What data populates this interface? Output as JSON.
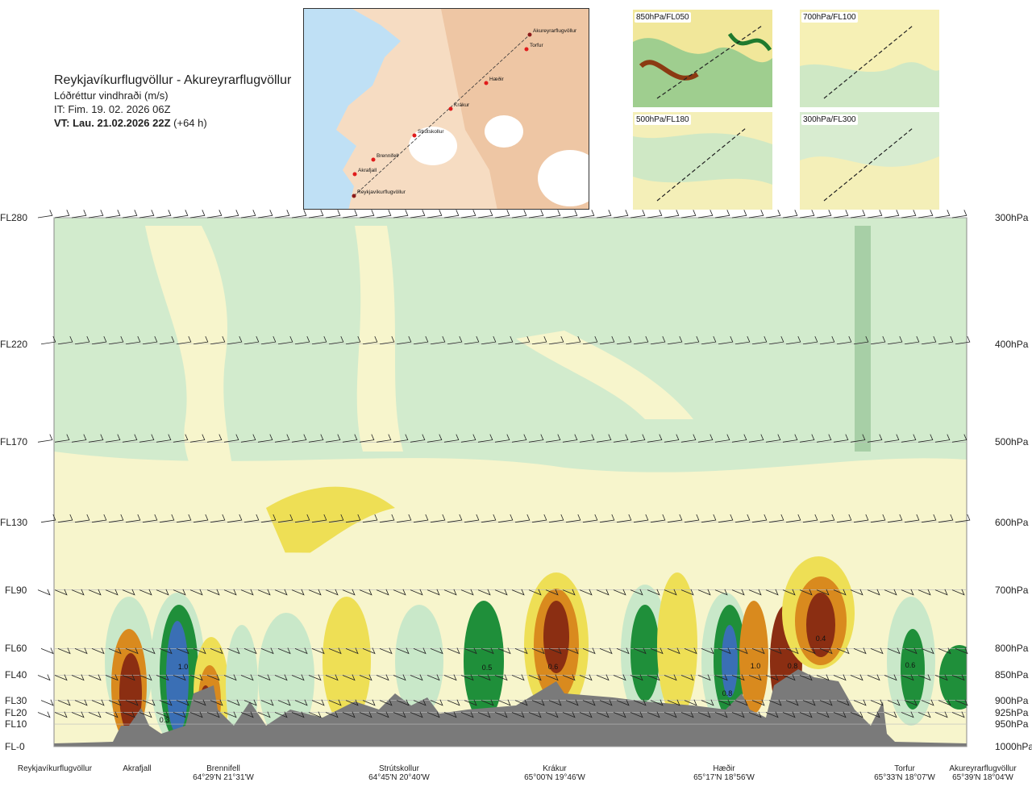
{
  "header": {
    "route": "Reykjavíkurflugvöllur - Akureyrarflugvöllur",
    "subtitle": "Lóðréttur vindhraði (m/s)",
    "issue_time": "IT: Fim. 19. 02. 2026 06Z",
    "valid_prefix": "VT: Lau. 21.02.2026 22Z",
    "valid_offset": "(+64 h)"
  },
  "map": {
    "places": [
      "Akureyrarflugvöllur",
      "Torfur",
      "Hæðir",
      "Krákur",
      "Strútskollur",
      "Brennifell",
      "Akrafjall",
      "Reykjavíkurflugvöllur"
    ]
  },
  "thumbnails": [
    {
      "label": "850hPa/FL050"
    },
    {
      "label": "700hPa/FL100"
    },
    {
      "label": "500hPa/FL180"
    },
    {
      "label": "300hPa/FL300"
    }
  ],
  "chart_data": {
    "type": "heatmap",
    "title": "Reykjavíkurflugvöllur - Akureyrarflugvöllur",
    "subtitle": "Lóðréttur vindhraði (m/s)",
    "y_left_ticks": [
      "FL280",
      "FL220",
      "FL170",
      "FL130",
      "FL90",
      "FL60",
      "FL40",
      "FL30",
      "FL20",
      "FL10",
      "FL-0"
    ],
    "y_right_ticks": [
      "300hPa",
      "400hPa",
      "500hPa",
      "600hPa",
      "700hPa",
      "800hPa",
      "850hPa",
      "900hPa",
      "925hPa",
      "950hPa",
      "1000hPa"
    ],
    "pressure_levels": [
      300,
      400,
      500,
      600,
      700,
      800,
      850,
      900,
      925,
      950,
      1000
    ],
    "x_locations": [
      {
        "name": "Reykjavíkurflugvöllur",
        "coord": ""
      },
      {
        "name": "Akrafjall",
        "coord": ""
      },
      {
        "name": "Brennifell",
        "coord": "64°29'N 21°31'W"
      },
      {
        "name": "Strútskollur",
        "coord": "64°45'N 20°40'W"
      },
      {
        "name": "Krákur",
        "coord": "65°00'N 19°46'W"
      },
      {
        "name": "Hæðir",
        "coord": "65°17'N 18°56'W"
      },
      {
        "name": "Torfur",
        "coord": "65°33'N 18°07'W"
      },
      {
        "name": "Akureyrarflugvöllur",
        "coord": "65°39'N 18°04'W"
      }
    ],
    "contour_labels": [
      "1.0",
      "0.3",
      "0.5",
      "0.6",
      "0.8",
      "1.0",
      "0.8",
      "0.4",
      "0.6"
    ],
    "colors": {
      "strong_up": "#3a6fb5",
      "up": "#1f8f3a",
      "weak_up": "#c9e8c9",
      "neutral": "#f7f5cc",
      "weak_down": "#eedf55",
      "down": "#d98a1e",
      "strong_down": "#8b2e12",
      "terrain": "#7a7a7a"
    }
  }
}
